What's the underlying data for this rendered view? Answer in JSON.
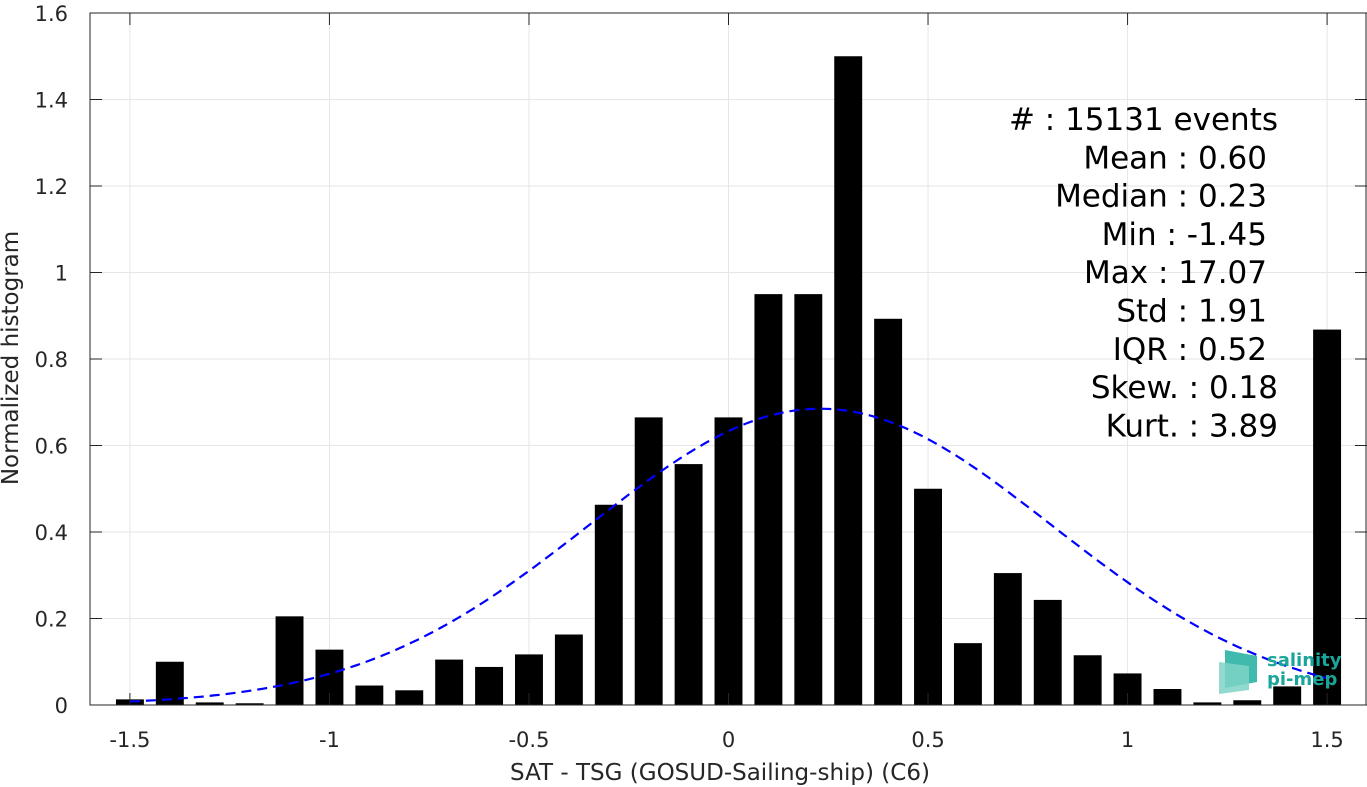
{
  "chart_data": {
    "type": "bar",
    "xlabel": "SAT - TSG (GOSUD-Sailing-ship) (C6)",
    "ylabel": "Normalized histogram",
    "xlim": [
      -1.6,
      1.6
    ],
    "ylim": [
      0,
      1.6
    ],
    "grid": true,
    "x_ticks": [
      -1.5,
      -1,
      -0.5,
      0,
      0.5,
      1,
      1.5
    ],
    "x_tick_labels": [
      "-1.5",
      "-1",
      "-0.5",
      "0",
      "0.5",
      "1",
      "1.5"
    ],
    "y_ticks": [
      0,
      0.2,
      0.4,
      0.6,
      0.8,
      1,
      1.2,
      1.4,
      1.6
    ],
    "y_tick_labels": [
      "0",
      "0.2",
      "0.4",
      "0.6",
      "0.8",
      "1",
      "1.2",
      "1.4",
      "1.6"
    ],
    "bar_color": "#000000",
    "bin_width": 0.1,
    "bar_fraction": 0.7,
    "x": [
      -1.5,
      -1.4,
      -1.3,
      -1.2,
      -1.1,
      -1.0,
      -0.9,
      -0.8,
      -0.7,
      -0.6,
      -0.5,
      -0.4,
      -0.3,
      -0.2,
      -0.1,
      0.0,
      0.1,
      0.2,
      0.3,
      0.4,
      0.5,
      0.6,
      0.7,
      0.8,
      0.9,
      1.0,
      1.1,
      1.2,
      1.3,
      1.4,
      1.5
    ],
    "values": [
      0.013,
      0.1,
      0.006,
      0.004,
      0.205,
      0.128,
      0.045,
      0.034,
      0.105,
      0.088,
      0.117,
      0.163,
      0.463,
      0.665,
      0.557,
      0.665,
      0.95,
      0.95,
      1.5,
      0.893,
      0.5,
      0.143,
      0.305,
      0.243,
      0.115,
      0.073,
      0.037,
      0.006,
      0.011,
      0.043,
      0.868
    ],
    "fit": {
      "type": "normal",
      "color": "#0000ff",
      "style": "dashed",
      "mean": 0.23,
      "std": 0.58,
      "peak": 0.685,
      "x_range": [
        -1.5,
        1.5
      ]
    },
    "annotations": [
      "#  : 15131 events",
      "Mean : 0.60",
      "Median : 0.23",
      "Min : -1.45",
      "Max : 17.07",
      "Std : 1.91",
      "IQR : 0.52",
      "Skew. : 0.18",
      "Kurt. : 3.89"
    ]
  },
  "logo": {
    "line1": "salinity",
    "line2": "pi-mep",
    "color": "#1aa59a"
  }
}
